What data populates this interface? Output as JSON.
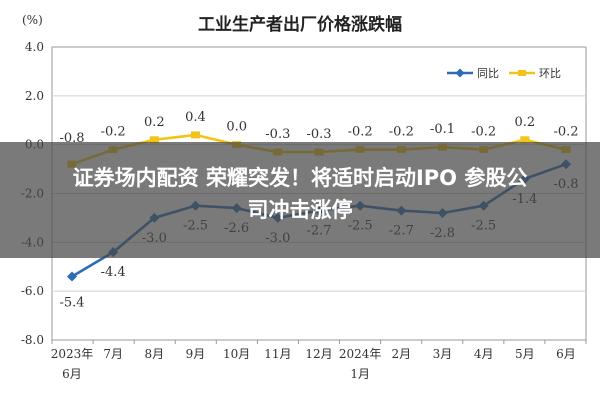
{
  "chart_data": {
    "type": "line",
    "title": "工业生产者出厂价格涨跌幅",
    "ylabel": "(%)",
    "xlabel": "",
    "ylim": [
      -8.0,
      4.0
    ],
    "yticks": [
      {
        "value": 4.0,
        "label": "4.0"
      },
      {
        "value": 2.0,
        "label": "2.0"
      },
      {
        "value": 0.0,
        "label": "0.0"
      },
      {
        "value": -2.0,
        "label": "-2.0"
      },
      {
        "value": -4.0,
        "label": "-4.0"
      },
      {
        "value": -6.0,
        "label": "-6.0"
      },
      {
        "value": -8.0,
        "label": "-8.0"
      }
    ],
    "categories": [
      [
        "2023年",
        "6月"
      ],
      [
        "7月"
      ],
      [
        "8月"
      ],
      [
        "9月"
      ],
      [
        "10月"
      ],
      [
        "11月"
      ],
      [
        "12月"
      ],
      [
        "2024年",
        "1月"
      ],
      [
        "2月"
      ],
      [
        "3月"
      ],
      [
        "4月"
      ],
      [
        "5月"
      ],
      [
        "6月"
      ]
    ],
    "grid": true,
    "legend_position": "top-right",
    "series": [
      {
        "name": "同比",
        "color": "#2e6bb5",
        "values": [
          -5.4,
          -4.4,
          -3.0,
          -2.5,
          -2.6,
          -3.0,
          -2.7,
          -2.5,
          -2.7,
          -2.8,
          -2.5,
          -1.4,
          -0.8
        ],
        "labels": [
          "-5.4",
          "-4.4",
          "-3.0",
          "-2.5",
          "-2.6",
          "-3.0",
          "-2.7",
          "-2.5",
          "-2.7",
          "-2.8",
          "-2.5",
          "-1.4",
          "-0.8"
        ]
      },
      {
        "name": "环比",
        "color": "#f2c417",
        "values": [
          -0.8,
          -0.2,
          0.2,
          0.4,
          0.0,
          -0.3,
          -0.3,
          -0.2,
          -0.2,
          -0.1,
          -0.2,
          0.2,
          -0.2
        ],
        "labels": [
          "-0.8",
          "-0.2",
          "0.2",
          "0.4",
          "0.0",
          "-0.3",
          "-0.3",
          "-0.2",
          "-0.2",
          "-0.1",
          "-0.2",
          "0.2",
          "-0.2"
        ]
      }
    ]
  },
  "overlay": {
    "line1": "证券场内配资 荣耀突发！将适时启动IPO 参股公",
    "line2": "司冲击涨停"
  }
}
